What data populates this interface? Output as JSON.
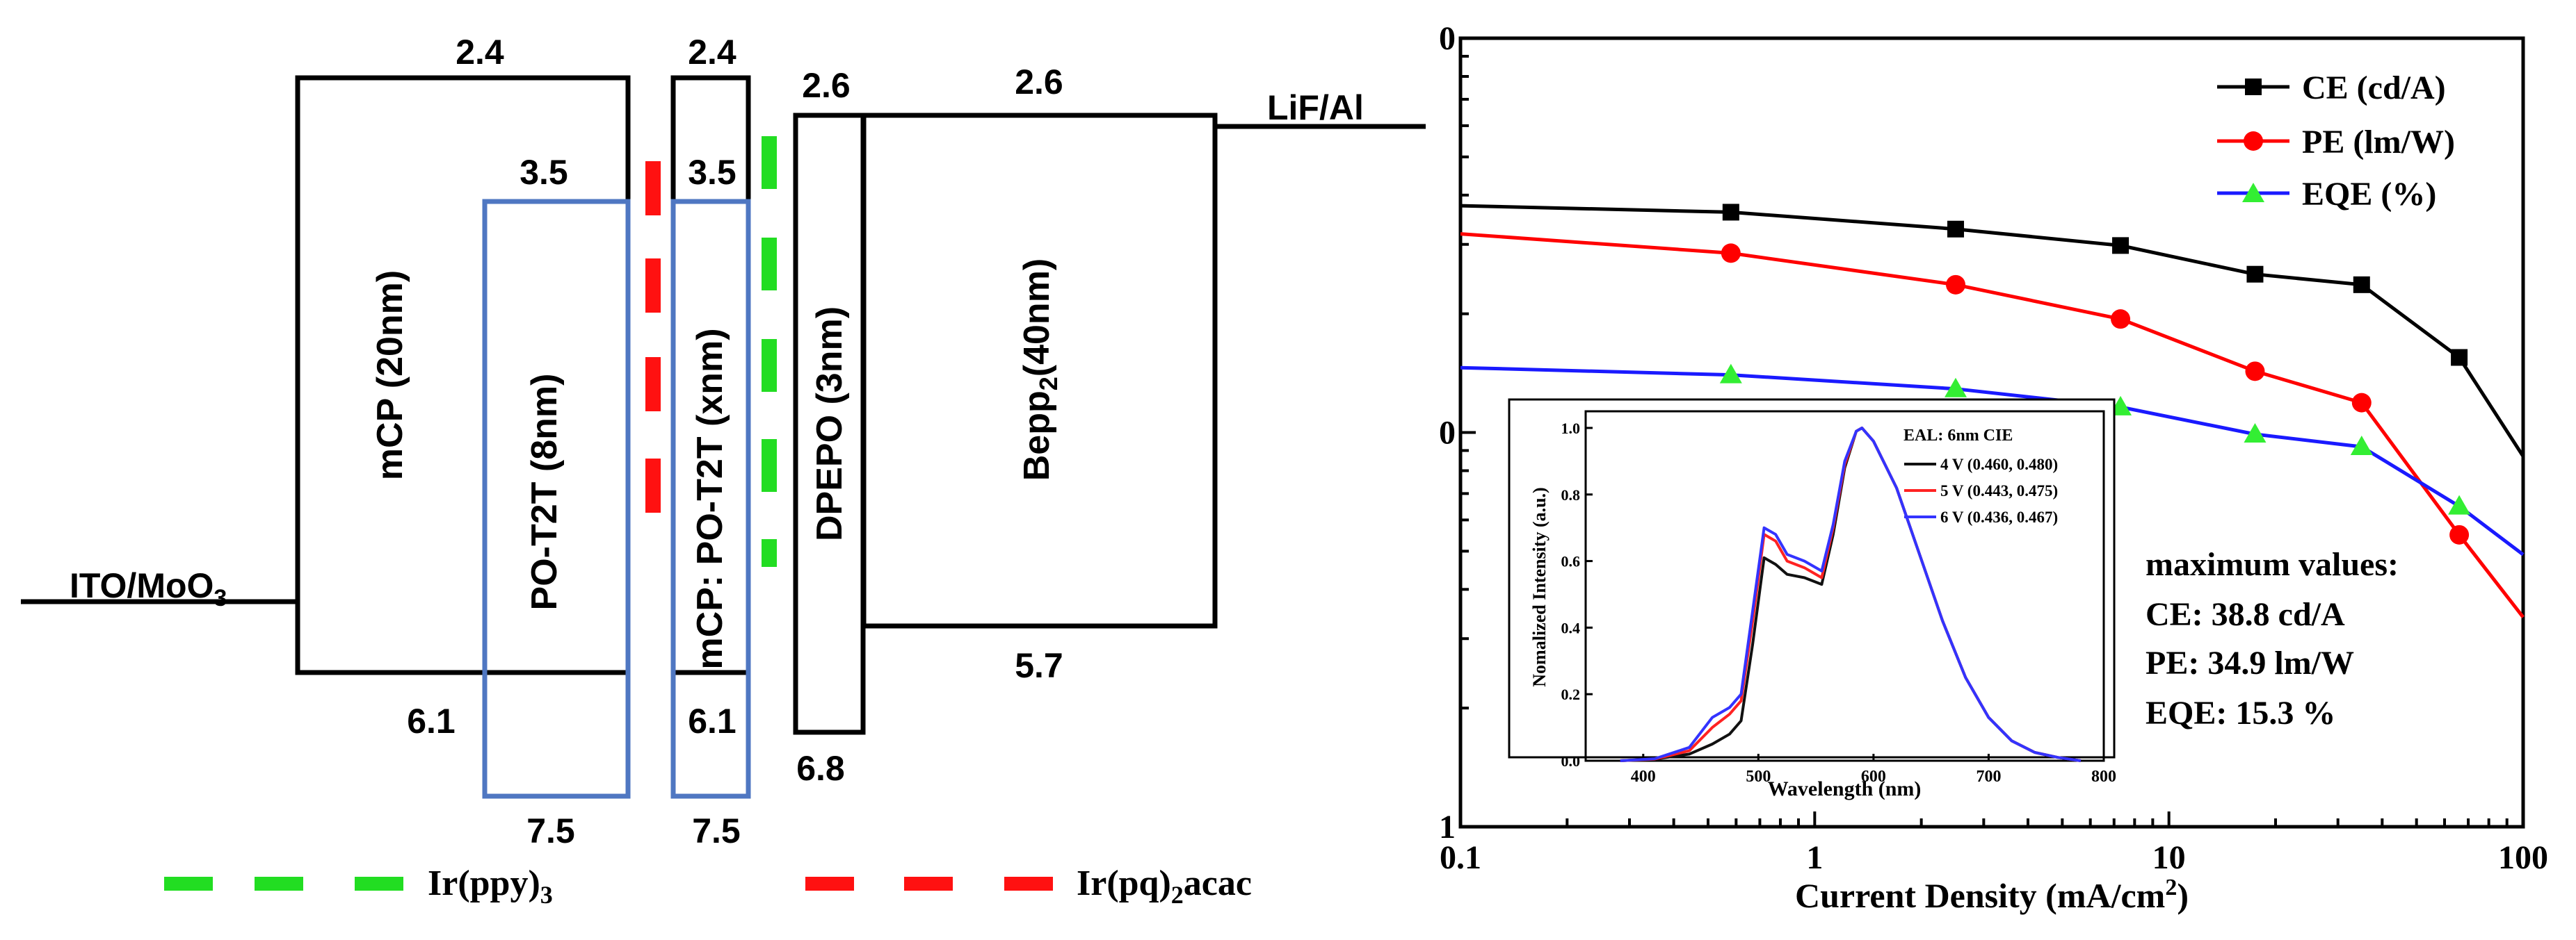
{
  "colors": {
    "hole_layer": "#4f77c2",
    "ir_ppy3": "#22dd22",
    "ir_pq2acac": "#ff1111",
    "ce": "#000000",
    "pe": "#ff0000",
    "eqe": "#1a1aff",
    "spec_4v": "#111111",
    "spec_5v": "#ff2222",
    "spec_6v": "#3333ff"
  },
  "energy_diagram": {
    "electrodes": {
      "anode": "ITO/MoO",
      "anode_sub": "3",
      "cathode": "LiF/Al"
    },
    "layers": [
      {
        "id": "mcp",
        "label": "mCP (20nm)",
        "lumo": "2.4",
        "homo": "6.1"
      },
      {
        "id": "po-t2t-8",
        "label": "PO-T2T (8nm)",
        "lumo": "3.5",
        "homo": "7.5"
      },
      {
        "id": "mcp-host",
        "lumo": "2.4"
      },
      {
        "id": "mcp-po-t2t",
        "label": "mCP: PO-T2T (xnm)",
        "lumo": "3.5",
        "homo": "6.1"
      },
      {
        "id": "po-t2t-x",
        "homo": "7.5"
      },
      {
        "id": "dpepo",
        "label": "DPEPO (3nm)",
        "lumo": "2.6",
        "homo": "6.8"
      },
      {
        "id": "bepp2",
        "label": "Bepp",
        "label_sub": "2",
        "label_suffix": "(40nm)",
        "lumo": "2.6",
        "homo": "5.7"
      }
    ],
    "legend": [
      {
        "id": "ppy",
        "text": "Ir(ppy)",
        "sub": "3",
        "suffix": "",
        "color_key": "ir_ppy3"
      },
      {
        "id": "pq",
        "text": "Ir(pq)",
        "sub": "2",
        "suffix": "acac",
        "color_key": "ir_pq2acac"
      }
    ]
  },
  "chart_data": [
    {
      "type": "line",
      "scale": "log-log",
      "xlabel": "Current Density (mA/cm",
      "xlabel_sup": "2",
      "xlabel_suffix": ")",
      "xlim": [
        0.1,
        100
      ],
      "x_ticks": [
        "0.1",
        "1",
        "10",
        "100"
      ],
      "ylim": [
        1,
        100
      ],
      "y_ticks": [
        "0",
        "0",
        "1"
      ],
      "series": [
        {
          "name": "CE (cd/A)",
          "marker": "square",
          "color_key": "ce",
          "x": [
            0.1,
            0.58,
            2.5,
            7.3,
            17.5,
            35,
            66,
            100
          ],
          "y": [
            37.6,
            36.2,
            32.8,
            29.8,
            25.2,
            23.7,
            15.5,
            8.7
          ]
        },
        {
          "name": "PE (lm/W)",
          "marker": "circle",
          "color_key": "pe",
          "x": [
            0.1,
            0.58,
            2.5,
            7.3,
            17.5,
            35,
            66,
            100
          ],
          "y": [
            31.9,
            28.5,
            23.7,
            19.4,
            14.3,
            11.9,
            5.5,
            3.4
          ]
        },
        {
          "name": "EQE (%)",
          "marker": "triangle",
          "color_key": "eqe",
          "x": [
            0.1,
            0.58,
            2.5,
            7.3,
            17.5,
            35,
            66,
            100
          ],
          "y": [
            14.6,
            14.0,
            12.9,
            11.6,
            9.9,
            9.2,
            6.5,
            4.9
          ]
        }
      ],
      "annotations": {
        "title": "maximum values:",
        "lines": [
          "CE: 38.8 cd/A",
          "PE: 34.9 lm/W",
          "EQE: 15.3 %"
        ]
      }
    },
    {
      "type": "line",
      "title": "EAL: 6nm   CIE",
      "xlabel": "Wavelength (nm)",
      "ylabel": "Nomalized Intensity (a.u.)",
      "xlim": [
        350,
        800
      ],
      "ylim": [
        0,
        1.05
      ],
      "x_ticks": [
        "400",
        "500",
        "600",
        "700",
        "800"
      ],
      "y_ticks": [
        "0.0",
        "0.2",
        "0.4",
        "0.6",
        "0.8",
        "1.0"
      ],
      "series": [
        {
          "name": "4 V (0.460, 0.480)",
          "color_key": "spec_4v",
          "x": [
            380,
            410,
            440,
            460,
            475,
            485,
            495,
            505,
            515,
            525,
            540,
            555,
            565,
            575,
            585,
            590,
            600,
            620,
            640,
            660,
            680,
            700,
            720,
            740,
            760,
            780
          ],
          "y": [
            0.0,
            0.005,
            0.02,
            0.05,
            0.08,
            0.12,
            0.35,
            0.61,
            0.59,
            0.56,
            0.55,
            0.53,
            0.68,
            0.88,
            0.99,
            1.0,
            0.96,
            0.82,
            0.62,
            0.42,
            0.25,
            0.13,
            0.06,
            0.025,
            0.01,
            0.0
          ]
        },
        {
          "name": "5 V (0.443, 0.475)",
          "color_key": "spec_5v",
          "x": [
            380,
            410,
            440,
            460,
            475,
            485,
            495,
            505,
            515,
            525,
            540,
            555,
            565,
            575,
            585,
            590,
            600,
            620,
            640,
            660,
            680,
            700,
            720,
            740,
            760,
            780
          ],
          "y": [
            0.0,
            0.005,
            0.03,
            0.1,
            0.14,
            0.18,
            0.42,
            0.68,
            0.66,
            0.6,
            0.58,
            0.55,
            0.7,
            0.89,
            0.99,
            1.0,
            0.96,
            0.82,
            0.62,
            0.42,
            0.25,
            0.13,
            0.06,
            0.025,
            0.01,
            0.0
          ]
        },
        {
          "name": "6 V (0.436, 0.467)",
          "color_key": "spec_6v",
          "x": [
            380,
            410,
            440,
            460,
            475,
            485,
            495,
            505,
            515,
            525,
            540,
            555,
            565,
            575,
            585,
            590,
            600,
            620,
            640,
            660,
            680,
            700,
            720,
            740,
            760,
            780
          ],
          "y": [
            0.0,
            0.006,
            0.04,
            0.13,
            0.16,
            0.2,
            0.45,
            0.7,
            0.68,
            0.62,
            0.6,
            0.57,
            0.71,
            0.9,
            0.99,
            1.0,
            0.96,
            0.82,
            0.62,
            0.42,
            0.25,
            0.13,
            0.06,
            0.025,
            0.01,
            0.0
          ]
        }
      ]
    }
  ]
}
